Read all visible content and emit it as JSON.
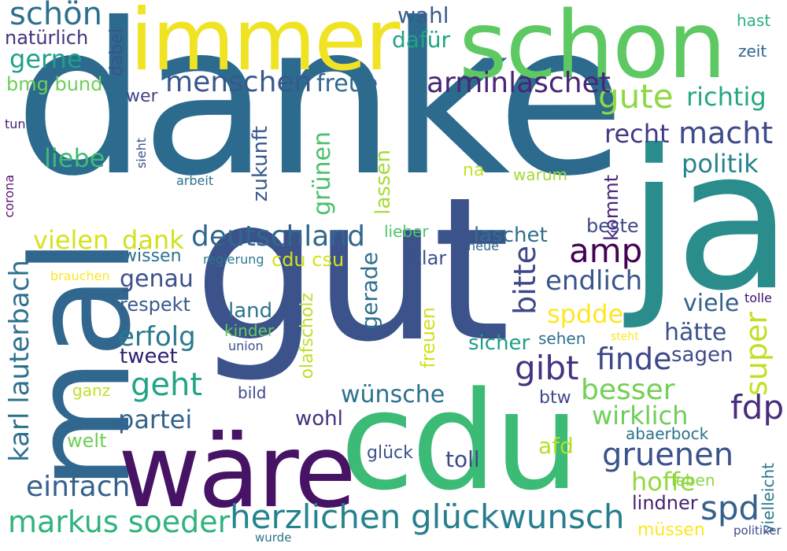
{
  "words": [
    {
      "text": "danke",
      "color": "#2c6b8e"
    },
    {
      "text": "gut",
      "color": "#3b528b"
    },
    {
      "text": "ja",
      "color": "#2a8d8c"
    },
    {
      "text": "mal",
      "color": "#31678e"
    },
    {
      "text": "schon",
      "color": "#5ec962"
    },
    {
      "text": "immer",
      "color": "#f0e324"
    },
    {
      "text": "cdu",
      "color": "#3bbb75"
    },
    {
      "text": "wäre",
      "color": "#471365"
    },
    {
      "text": "herzlichen",
      "color": "#25838e"
    },
    {
      "text": "glückwunsch",
      "color": "#277f8e"
    },
    {
      "text": "markus soeder",
      "color": "#2fb47c"
    },
    {
      "text": "deutschland",
      "color": "#31678e"
    },
    {
      "text": "karl lauterbach",
      "color": "#2d708e"
    },
    {
      "text": "menschen",
      "color": "#38588c"
    },
    {
      "text": "gruenen",
      "color": "#3b528b"
    },
    {
      "text": "einfach",
      "color": "#35608d"
    },
    {
      "text": "gute",
      "color": "#8fd744"
    },
    {
      "text": "schön",
      "color": "#2d708e"
    },
    {
      "text": "geht",
      "color": "#21a585"
    },
    {
      "text": "amp",
      "color": "#440154"
    },
    {
      "text": "gibt",
      "color": "#46327e"
    },
    {
      "text": "spd",
      "color": "#35608d"
    },
    {
      "text": "fdp",
      "color": "#472d7b"
    },
    {
      "text": "besser",
      "color": "#73d056"
    },
    {
      "text": "finde",
      "color": "#3e4989"
    },
    {
      "text": "endlich",
      "color": "#39568c"
    },
    {
      "text": "macht",
      "color": "#3e4a89"
    },
    {
      "text": "arminlaschet",
      "color": "#482576"
    },
    {
      "text": "bitte",
      "color": "#3f4788"
    },
    {
      "text": "super",
      "color": "#c2df23"
    },
    {
      "text": "politik",
      "color": "#26828e"
    },
    {
      "text": "richtig",
      "color": "#22a884"
    },
    {
      "text": "recht",
      "color": "#443a83"
    },
    {
      "text": "vielen",
      "color": "#d8e219"
    },
    {
      "text": "dank",
      "color": "#d0e11c"
    },
    {
      "text": "erfolg",
      "color": "#29798e"
    },
    {
      "text": "spdde",
      "color": "#fde725"
    },
    {
      "text": "wirklich",
      "color": "#6ece58"
    },
    {
      "text": "partei",
      "color": "#33638d"
    },
    {
      "text": "genau",
      "color": "#3b528b"
    },
    {
      "text": "gerne",
      "color": "#1fa188"
    },
    {
      "text": "freue",
      "color": "#31688e"
    },
    {
      "text": "liebe",
      "color": "#3dbc74"
    },
    {
      "text": "grünen",
      "color": "#4ac16d"
    },
    {
      "text": "wünsche",
      "color": "#2c728e"
    },
    {
      "text": "hoffe",
      "color": "#95d840"
    },
    {
      "text": "viele",
      "color": "#34618d"
    },
    {
      "text": "hätte",
      "color": "#3b528b"
    },
    {
      "text": "sicher",
      "color": "#1f9f88"
    },
    {
      "text": "dafür",
      "color": "#20a386"
    },
    {
      "text": "zukunft",
      "color": "#38598c"
    },
    {
      "text": "gerade",
      "color": "#2d708e"
    },
    {
      "text": "laschet",
      "color": "#2d708e"
    },
    {
      "text": "wahl",
      "color": "#365d8d"
    },
    {
      "text": "afd",
      "color": "#b5de2b"
    },
    {
      "text": "toll",
      "color": "#3e4989"
    },
    {
      "text": "tweet",
      "color": "#2d1e70"
    },
    {
      "text": "kommt",
      "color": "#482878"
    },
    {
      "text": "lassen",
      "color": "#a5db36"
    },
    {
      "text": "natürlich",
      "color": "#46337e"
    },
    {
      "text": "wohl",
      "color": "#46327e"
    },
    {
      "text": "sagen",
      "color": "#3e4a89"
    },
    {
      "text": "respekt",
      "color": "#38598c"
    },
    {
      "text": "land",
      "color": "#2b758e"
    },
    {
      "text": "olafscholz",
      "color": "#bddf26"
    },
    {
      "text": "freuen",
      "color": "#d2e21b"
    },
    {
      "text": "cdu csu",
      "color": "#d5e21a"
    },
    {
      "text": "beste",
      "color": "#3e4a89"
    },
    {
      "text": "lindner",
      "color": "#482374"
    },
    {
      "text": "bmg bund",
      "color": "#6ece58"
    },
    {
      "text": "wissen",
      "color": "#2c728e"
    },
    {
      "text": "dabei",
      "color": "#3b528b"
    },
    {
      "text": "klar",
      "color": "#3b518b"
    },
    {
      "text": "lieber",
      "color": "#4ec36b"
    },
    {
      "text": "glück",
      "color": "#3b528b"
    },
    {
      "text": "welt",
      "color": "#6ece58"
    },
    {
      "text": "leben",
      "color": "#8bd646"
    },
    {
      "text": "abaerbock",
      "color": "#2c728e"
    },
    {
      "text": "kinder",
      "color": "#65cb5e"
    },
    {
      "text": "müssen",
      "color": "#fde725"
    },
    {
      "text": "na",
      "color": "#c2df23"
    },
    {
      "text": "vielleicht",
      "color": "#2a778e"
    },
    {
      "text": "ganz",
      "color": "#c2df23"
    },
    {
      "text": "btw",
      "color": "#3e4989"
    },
    {
      "text": "hast",
      "color": "#2ab07f"
    },
    {
      "text": "zeit",
      "color": "#33638d"
    },
    {
      "text": "sehen",
      "color": "#2d708e"
    },
    {
      "text": "warum",
      "color": "#a2da37"
    },
    {
      "text": "bild",
      "color": "#3e4989"
    },
    {
      "text": "wer",
      "color": "#414487"
    },
    {
      "text": "union",
      "color": "#3b528b"
    },
    {
      "text": "regierung",
      "color": "#2a788e"
    },
    {
      "text": "arbeit",
      "color": "#2d708e"
    },
    {
      "text": "brauchen",
      "color": "#fde725"
    },
    {
      "text": "neue",
      "color": "#306a8e"
    },
    {
      "text": "sieht",
      "color": "#3b528b"
    },
    {
      "text": "tolle",
      "color": "#3b0f70"
    },
    {
      "text": "steht",
      "color": "#fde725"
    },
    {
      "text": "tun",
      "color": "#482071"
    },
    {
      "text": "corona",
      "color": "#5c126e"
    },
    {
      "text": "politiker",
      "color": "#3e4a89"
    },
    {
      "text": "wurde",
      "color": "#2c728e"
    }
  ]
}
